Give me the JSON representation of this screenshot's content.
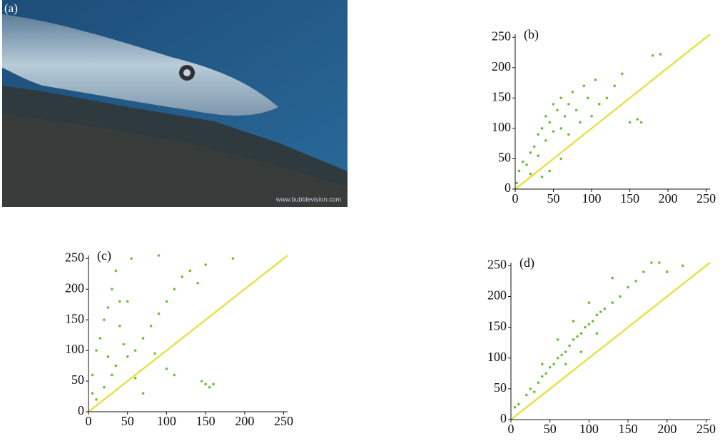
{
  "panel_a": {
    "label": "(a)",
    "watermark": "www.bubblevision.com"
  },
  "chart_data": [
    {
      "type": "scatter",
      "label": "(b)",
      "color": "#6cbf3c",
      "diagonal_color": "#e8e04a",
      "xlim": [
        0,
        255
      ],
      "ylim": [
        0,
        255
      ],
      "xticks": [
        0,
        50,
        100,
        150,
        200,
        250
      ],
      "yticks": [
        0,
        50,
        100,
        150,
        200,
        250
      ],
      "diagonal": {
        "x": [
          0,
          255
        ],
        "y": [
          0,
          255
        ]
      },
      "x": [
        5,
        10,
        15,
        20,
        25,
        30,
        30,
        35,
        40,
        40,
        45,
        50,
        50,
        55,
        60,
        60,
        65,
        70,
        70,
        75,
        80,
        85,
        90,
        95,
        100,
        105,
        110,
        120,
        130,
        140,
        150,
        160,
        165,
        180,
        190,
        35,
        45,
        60,
        2,
        20
      ],
      "y": [
        30,
        45,
        40,
        60,
        70,
        55,
        90,
        100,
        80,
        120,
        110,
        95,
        140,
        130,
        100,
        150,
        120,
        140,
        90,
        160,
        130,
        110,
        170,
        150,
        120,
        180,
        140,
        150,
        170,
        190,
        110,
        115,
        110,
        220,
        222,
        20,
        30,
        50,
        10,
        25
      ]
    },
    {
      "type": "scatter",
      "label": "(c)",
      "color": "#6cbf3c",
      "diagonal_color": "#e8e04a",
      "xlim": [
        0,
        255
      ],
      "ylim": [
        0,
        255
      ],
      "xticks": [
        0,
        50,
        100,
        150,
        200,
        250
      ],
      "yticks": [
        0,
        50,
        100,
        150,
        200,
        250
      ],
      "diagonal": {
        "x": [
          0,
          255
        ],
        "y": [
          0,
          255
        ]
      },
      "x": [
        5,
        5,
        10,
        15,
        20,
        25,
        30,
        35,
        40,
        40,
        45,
        50,
        20,
        30,
        60,
        70,
        80,
        90,
        100,
        110,
        120,
        130,
        140,
        150,
        185,
        90,
        150,
        155,
        160,
        145,
        110,
        70,
        60,
        50,
        10,
        25,
        35,
        55,
        85,
        100
      ],
      "y": [
        30,
        60,
        100,
        120,
        150,
        170,
        200,
        230,
        180,
        140,
        110,
        90,
        40,
        60,
        100,
        120,
        140,
        160,
        180,
        200,
        220,
        230,
        210,
        240,
        250,
        255,
        45,
        40,
        45,
        50,
        60,
        30,
        55,
        180,
        20,
        90,
        75,
        250,
        95,
        70
      ]
    },
    {
      "type": "scatter",
      "label": "(d)",
      "color": "#6cbf3c",
      "diagonal_color": "#e8e04a",
      "xlim": [
        0,
        255
      ],
      "ylim": [
        0,
        255
      ],
      "xticks": [
        0,
        50,
        100,
        150,
        200,
        250
      ],
      "yticks": [
        0,
        50,
        100,
        150,
        200,
        250
      ],
      "diagonal": {
        "x": [
          0,
          255
        ],
        "y": [
          0,
          255
        ]
      },
      "x": [
        5,
        10,
        20,
        25,
        30,
        35,
        40,
        45,
        50,
        55,
        60,
        65,
        70,
        75,
        80,
        85,
        90,
        95,
        100,
        105,
        110,
        115,
        120,
        130,
        140,
        150,
        160,
        170,
        180,
        190,
        200,
        220,
        60,
        80,
        100,
        70,
        90,
        40,
        110,
        130
      ],
      "y": [
        20,
        25,
        40,
        50,
        45,
        60,
        70,
        75,
        85,
        90,
        100,
        105,
        110,
        120,
        130,
        135,
        140,
        150,
        155,
        160,
        170,
        175,
        180,
        190,
        200,
        215,
        225,
        240,
        255,
        255,
        240,
        250,
        130,
        160,
        190,
        90,
        110,
        90,
        140,
        230
      ]
    }
  ]
}
